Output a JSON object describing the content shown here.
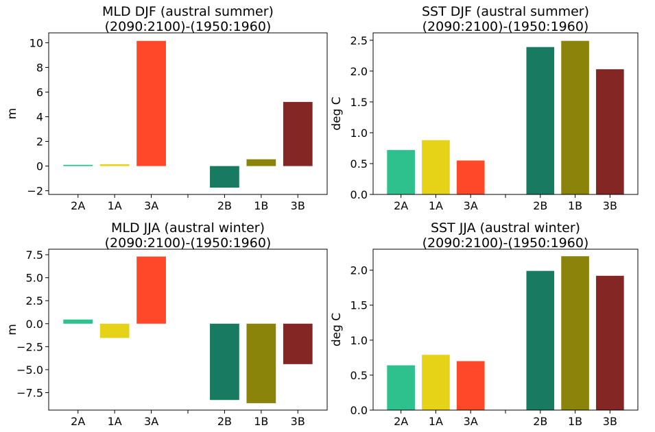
{
  "chart_data": [
    {
      "type": "bar",
      "title": "MLD DJF (austral summer)",
      "subtitle": "(2090:2100)-(1950:1960)",
      "xlabel": "",
      "ylabel": "m",
      "categories": [
        "2A",
        "1A",
        "3A",
        "",
        "2B",
        "1B",
        "3B"
      ],
      "values": [
        0.1,
        0.15,
        10.15,
        null,
        -1.75,
        0.55,
        5.2
      ],
      "colors": [
        "#2ec18d",
        "#e6d317",
        "#ff4729",
        null,
        "#187a60",
        "#8a840b",
        "#842623"
      ],
      "ylim": [
        -2.3,
        10.8
      ],
      "yticks": [
        -2,
        0,
        2,
        4,
        6,
        8,
        10
      ],
      "ytick_labels": [
        "−2",
        "0",
        "2",
        "4",
        "6",
        "8",
        "10"
      ],
      "grid": false
    },
    {
      "type": "bar",
      "title": "SST DJF (austral summer)",
      "subtitle": "(2090:2100)-(1950:1960)",
      "xlabel": "",
      "ylabel": "deg C",
      "categories": [
        "2A",
        "1A",
        "3A",
        "",
        "2B",
        "1B",
        "3B"
      ],
      "values": [
        0.72,
        0.88,
        0.55,
        null,
        2.39,
        2.49,
        2.03
      ],
      "colors": [
        "#2ec18d",
        "#e6d317",
        "#ff4729",
        null,
        "#187a60",
        "#8a840b",
        "#842623"
      ],
      "ylim": [
        0,
        2.62
      ],
      "yticks": [
        0,
        0.5,
        1.0,
        1.5,
        2.0,
        2.5
      ],
      "ytick_labels": [
        "0.0",
        "0.5",
        "1.0",
        "1.5",
        "2.0",
        "2.5"
      ],
      "grid": false
    },
    {
      "type": "bar",
      "title": "MLD JJA (austral winter)",
      "subtitle": "(2090:2100)-(1950:1960)",
      "xlabel": "",
      "ylabel": "m",
      "categories": [
        "2A",
        "1A",
        "3A",
        "",
        "2B",
        "1B",
        "3B"
      ],
      "values": [
        0.45,
        -1.55,
        7.3,
        null,
        -8.3,
        -8.65,
        -4.4
      ],
      "colors": [
        "#2ec18d",
        "#e6d317",
        "#ff4729",
        null,
        "#187a60",
        "#8a840b",
        "#842623"
      ],
      "ylim": [
        -9.4,
        8.1
      ],
      "yticks": [
        -7.5,
        -5.0,
        -2.5,
        0.0,
        2.5,
        5.0,
        7.5
      ],
      "ytick_labels": [
        "−7.5",
        "−5.0",
        "−2.5",
        "0.0",
        "2.5",
        "5.0",
        "7.5"
      ],
      "grid": false
    },
    {
      "type": "bar",
      "title": "SST JJA (austral winter)",
      "subtitle": "(2090:2100)-(1950:1960)",
      "xlabel": "",
      "ylabel": "deg C",
      "categories": [
        "2A",
        "1A",
        "3A",
        "",
        "2B",
        "1B",
        "3B"
      ],
      "values": [
        0.64,
        0.79,
        0.7,
        null,
        1.99,
        2.2,
        1.92
      ],
      "colors": [
        "#2ec18d",
        "#e6d317",
        "#ff4729",
        null,
        "#187a60",
        "#8a840b",
        "#842623"
      ],
      "ylim": [
        0,
        2.3
      ],
      "yticks": [
        0,
        0.5,
        1.0,
        1.5,
        2.0
      ],
      "ytick_labels": [
        "0.0",
        "0.5",
        "1.0",
        "1.5",
        "2.0"
      ],
      "grid": false
    }
  ]
}
